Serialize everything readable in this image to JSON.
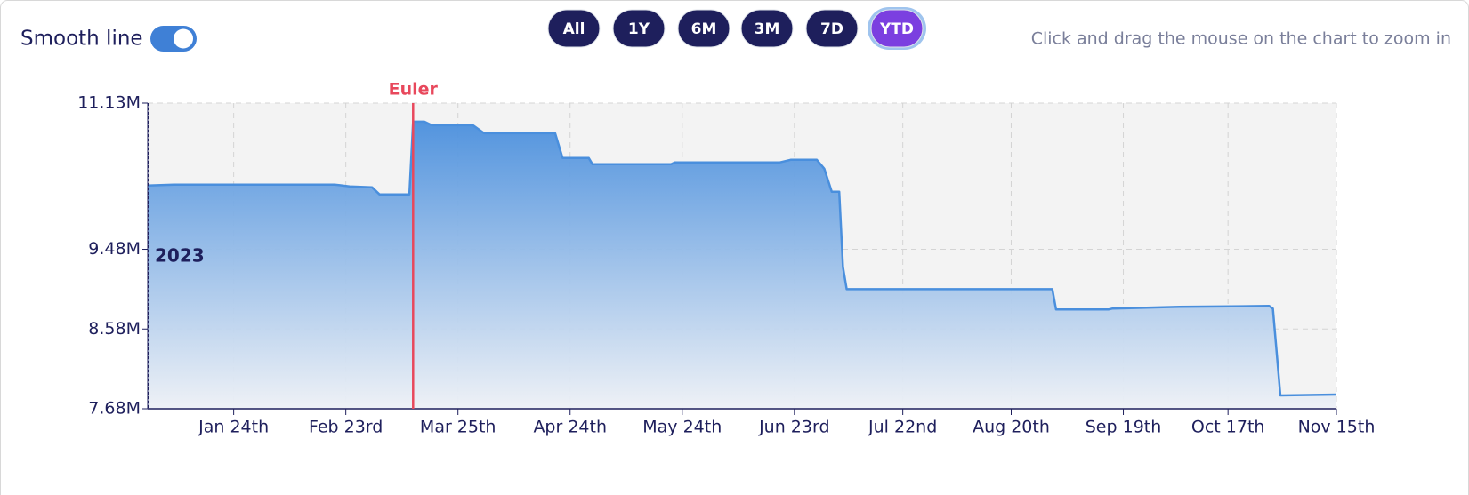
{
  "controls": {
    "smooth_label": "Smooth line",
    "smooth_on": true,
    "ranges": [
      "All",
      "1Y",
      "6M",
      "3M",
      "7D",
      "YTD"
    ],
    "active_range": "YTD",
    "hint": "Click and drag the mouse on the chart to zoom in"
  },
  "chart_data": {
    "type": "area",
    "color": "#4a8fdd",
    "x": [
      "2023-01-01",
      "2023-01-08",
      "2023-02-20",
      "2023-02-24",
      "2023-03-02",
      "2023-03-04",
      "2023-03-12",
      "2023-03-13",
      "2023-03-16",
      "2023-03-18",
      "2023-03-29",
      "2023-04-01",
      "2023-04-20",
      "2023-04-22",
      "2023-04-29",
      "2023-04-30",
      "2023-05-21",
      "2023-05-22",
      "2023-06-19",
      "2023-06-22",
      "2023-06-29",
      "2023-07-01",
      "2023-07-03",
      "2023-07-05",
      "2023-07-06",
      "2023-07-07",
      "2023-08-31",
      "2023-09-01",
      "2023-09-15",
      "2023-09-16",
      "2023-10-04",
      "2023-10-28",
      "2023-10-29",
      "2023-10-31",
      "2023-11-15"
    ],
    "values": [
      10.2,
      10.21,
      10.21,
      10.19,
      10.18,
      10.1,
      10.1,
      10.92,
      10.92,
      10.88,
      10.88,
      10.79,
      10.79,
      10.51,
      10.51,
      10.44,
      10.44,
      10.46,
      10.46,
      10.49,
      10.49,
      10.39,
      10.13,
      10.13,
      9.28,
      9.03,
      9.03,
      8.8,
      8.8,
      8.81,
      8.83,
      8.84,
      8.81,
      7.83,
      7.84
    ],
    "xlim": [
      "2023-01-01",
      "2023-11-15"
    ],
    "xticks": [
      {
        "value": "2023-01-24",
        "label": "Jan 24th"
      },
      {
        "value": "2023-02-23",
        "label": "Feb 23rd"
      },
      {
        "value": "2023-03-25",
        "label": "Mar 25th"
      },
      {
        "value": "2023-04-24",
        "label": "Apr 24th"
      },
      {
        "value": "2023-05-24",
        "label": "May 24th"
      },
      {
        "value": "2023-06-23",
        "label": "Jun 23rd"
      },
      {
        "value": "2023-07-22",
        "label": "Jul 22nd"
      },
      {
        "value": "2023-08-20",
        "label": "Aug 20th"
      },
      {
        "value": "2023-09-19",
        "label": "Sep 19th"
      },
      {
        "value": "2023-10-17",
        "label": "Oct 17th"
      },
      {
        "value": "2023-11-15",
        "label": "Nov 15th"
      }
    ],
    "ylim": [
      7.68,
      11.13
    ],
    "yticks": [
      {
        "value": 7.68,
        "label": "7.68M"
      },
      {
        "value": 8.58,
        "label": "8.58M"
      },
      {
        "value": 9.48,
        "label": "9.48M"
      },
      {
        "value": 11.13,
        "label": "11.13M"
      }
    ],
    "grid": true,
    "events": [
      {
        "x": "2023-03-13",
        "label": "Euler",
        "color": "#e8485c"
      }
    ],
    "year_marker": {
      "x": "2023-01-01",
      "label": "2023",
      "color": "#1e1f5c"
    }
  }
}
